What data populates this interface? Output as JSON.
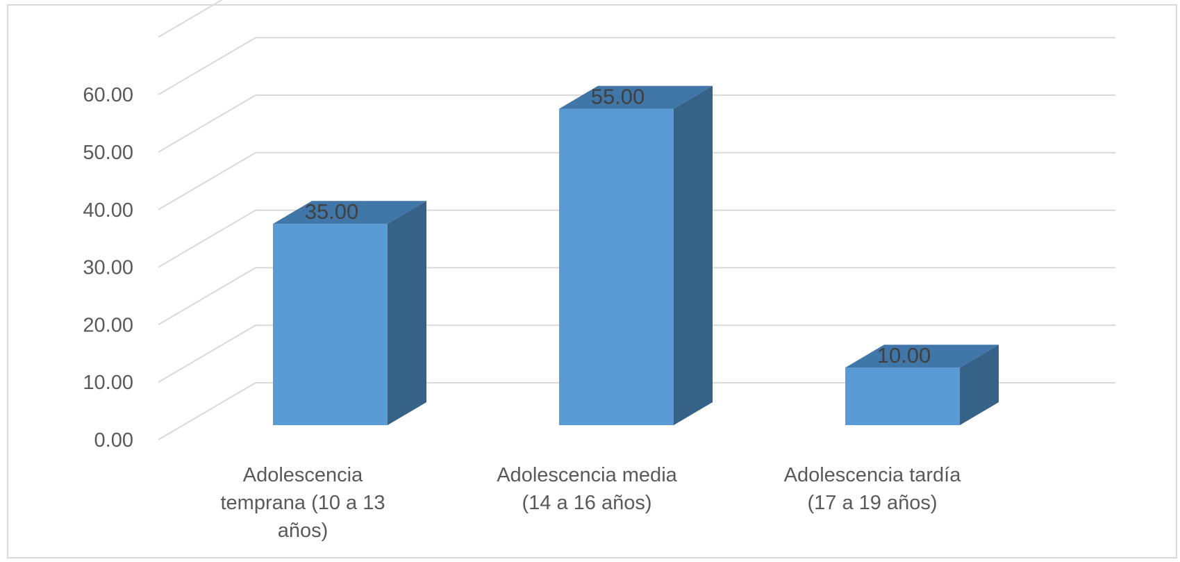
{
  "chart_data": {
    "type": "bar",
    "style": "3d-column",
    "categories": [
      [
        "Adolescencia",
        "temprana (10 a 13",
        "años)"
      ],
      [
        "Adolescencia media",
        "(14 a 16 años)"
      ],
      [
        "Adolescencia tardía",
        "(17 a 19 años)"
      ]
    ],
    "values": [
      35,
      55,
      10
    ],
    "data_labels": [
      "35.00",
      "55.00",
      "10.00"
    ],
    "y_ticks": [
      "0.00",
      "10.00",
      "20.00",
      "30.00",
      "40.00",
      "50.00",
      "60.00"
    ],
    "ylim": [
      0,
      70
    ],
    "grid": true,
    "legend": "none",
    "colors": {
      "bar_front": "#5b9bd5",
      "bar_side": "#376287",
      "bar_top": "#4176a8",
      "grid": "#d9d9d9",
      "tick_text": "#595959",
      "data_label_text": "#404040"
    }
  }
}
